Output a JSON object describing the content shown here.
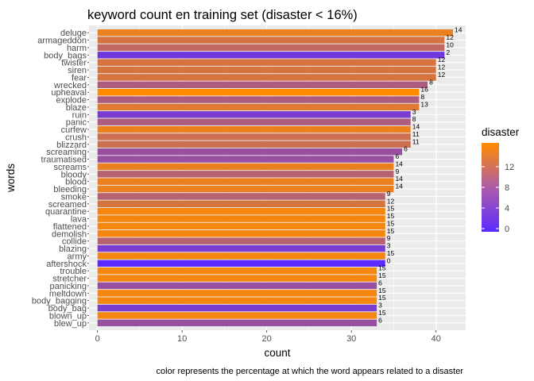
{
  "chart_data": {
    "type": "bar",
    "orientation": "horizontal",
    "title": "keyword count en training set (disaster < 16%)",
    "xlabel": "count",
    "ylabel": "words",
    "caption": "color represents the percentage at which the word appears related to a disaster",
    "xlim": [
      -1,
      43.5
    ],
    "xticks": [
      0,
      10,
      20,
      30,
      40
    ],
    "grid": true,
    "legend": {
      "title": "disaster",
      "placement": "right",
      "min": 0,
      "max": 16,
      "ticks": [
        0,
        4,
        8,
        12
      ],
      "colors": {
        "low": "#5b2bff",
        "high": "#ff8c00"
      }
    },
    "categories": [
      "deluge",
      "armageddon",
      "harm",
      "body_bags",
      "twister",
      "siren",
      "fear",
      "wrecked",
      "upheaval",
      "explode",
      "blaze",
      "ruin",
      "panic",
      "curfew",
      "crush",
      "blizzard",
      "screaming",
      "traumatised",
      "screams",
      "bloody",
      "blood",
      "bleeding",
      "smoke",
      "screamed",
      "quarantine",
      "lava",
      "flattened",
      "demolish",
      "collide",
      "blazing",
      "army",
      "aftershock",
      "trouble",
      "stretcher",
      "panicking",
      "meltdown",
      "body_bagging",
      "body_bag",
      "blown_up",
      "blew_up"
    ],
    "values": [
      42,
      41,
      41,
      41,
      40,
      40,
      40,
      39,
      38,
      38,
      38,
      37,
      37,
      37,
      37,
      37,
      36,
      35,
      35,
      35,
      35,
      35,
      34,
      34,
      34,
      34,
      34,
      34,
      34,
      34,
      34,
      34,
      33,
      33,
      33,
      33,
      33,
      33,
      33,
      33
    ],
    "disaster": [
      14,
      12,
      10,
      2,
      12,
      12,
      12,
      8,
      16,
      8,
      13,
      3,
      8,
      14,
      11,
      11,
      6,
      6,
      14,
      9,
      14,
      14,
      9,
      12,
      15,
      15,
      15,
      15,
      9,
      3,
      15,
      0,
      15,
      15,
      6,
      15,
      15,
      3,
      15,
      6
    ],
    "data_labels": [
      "14",
      "12",
      "10",
      "2",
      "12",
      "12",
      "12",
      "8",
      "16",
      "8",
      "13",
      "3",
      "8",
      "14",
      "11",
      "11",
      "6",
      "6",
      "14",
      "9",
      "14",
      "14",
      "9",
      "12",
      "15",
      "15",
      "15",
      "15",
      "9",
      "3",
      "15",
      "0",
      "15",
      "15",
      "6",
      "15",
      "15",
      "3",
      "15",
      "6"
    ]
  }
}
